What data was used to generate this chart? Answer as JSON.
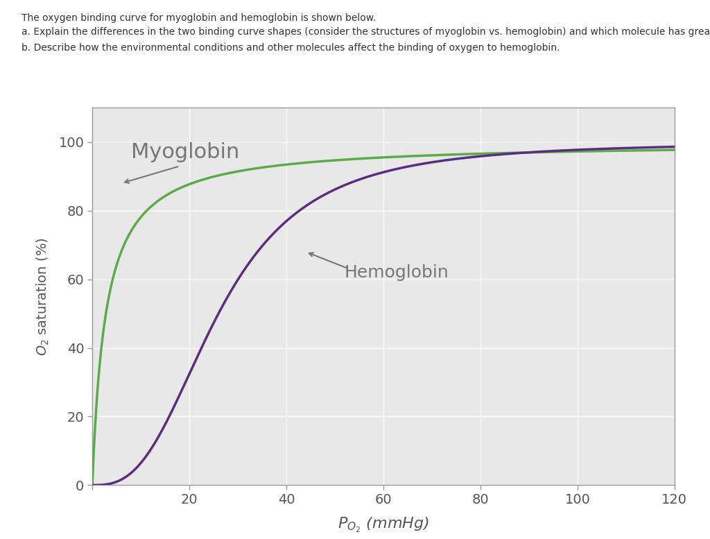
{
  "title_text": "The oxygen binding curve for myoglobin and hemoglobin is shown below.",
  "subtitle_a": "a. Explain the differences in the two binding curve shapes (consider the structures of myoglobin vs. hemoglobin) and which molecule has greater binding affinity in the tissues.",
  "subtitle_b": "b. Describe how the environmental conditions and other molecules affect the binding of oxygen to hemoglobin.",
  "xlabel": "$P_{O_2}$ (mmHg)",
  "ylabel": "$O_2$ saturation (%)",
  "myoglobin_label": "Myoglobin",
  "hemoglobin_label": "Hemoglobin",
  "myoglobin_color": "#5aab4a",
  "hemoglobin_color": "#5b2d82",
  "background_color": "#e0e0e0",
  "plot_bg_color": "#e8e8e8",
  "xlim": [
    0,
    120
  ],
  "ylim": [
    0,
    110
  ],
  "xticks": [
    0,
    20,
    40,
    60,
    80,
    100,
    120
  ],
  "yticks": [
    0,
    20,
    40,
    60,
    80,
    100
  ],
  "myoglobin_p50": 2.8,
  "hemoglobin_p50": 26.0,
  "hemoglobin_n": 2.8,
  "fig_width": 10.24,
  "fig_height": 7.77
}
